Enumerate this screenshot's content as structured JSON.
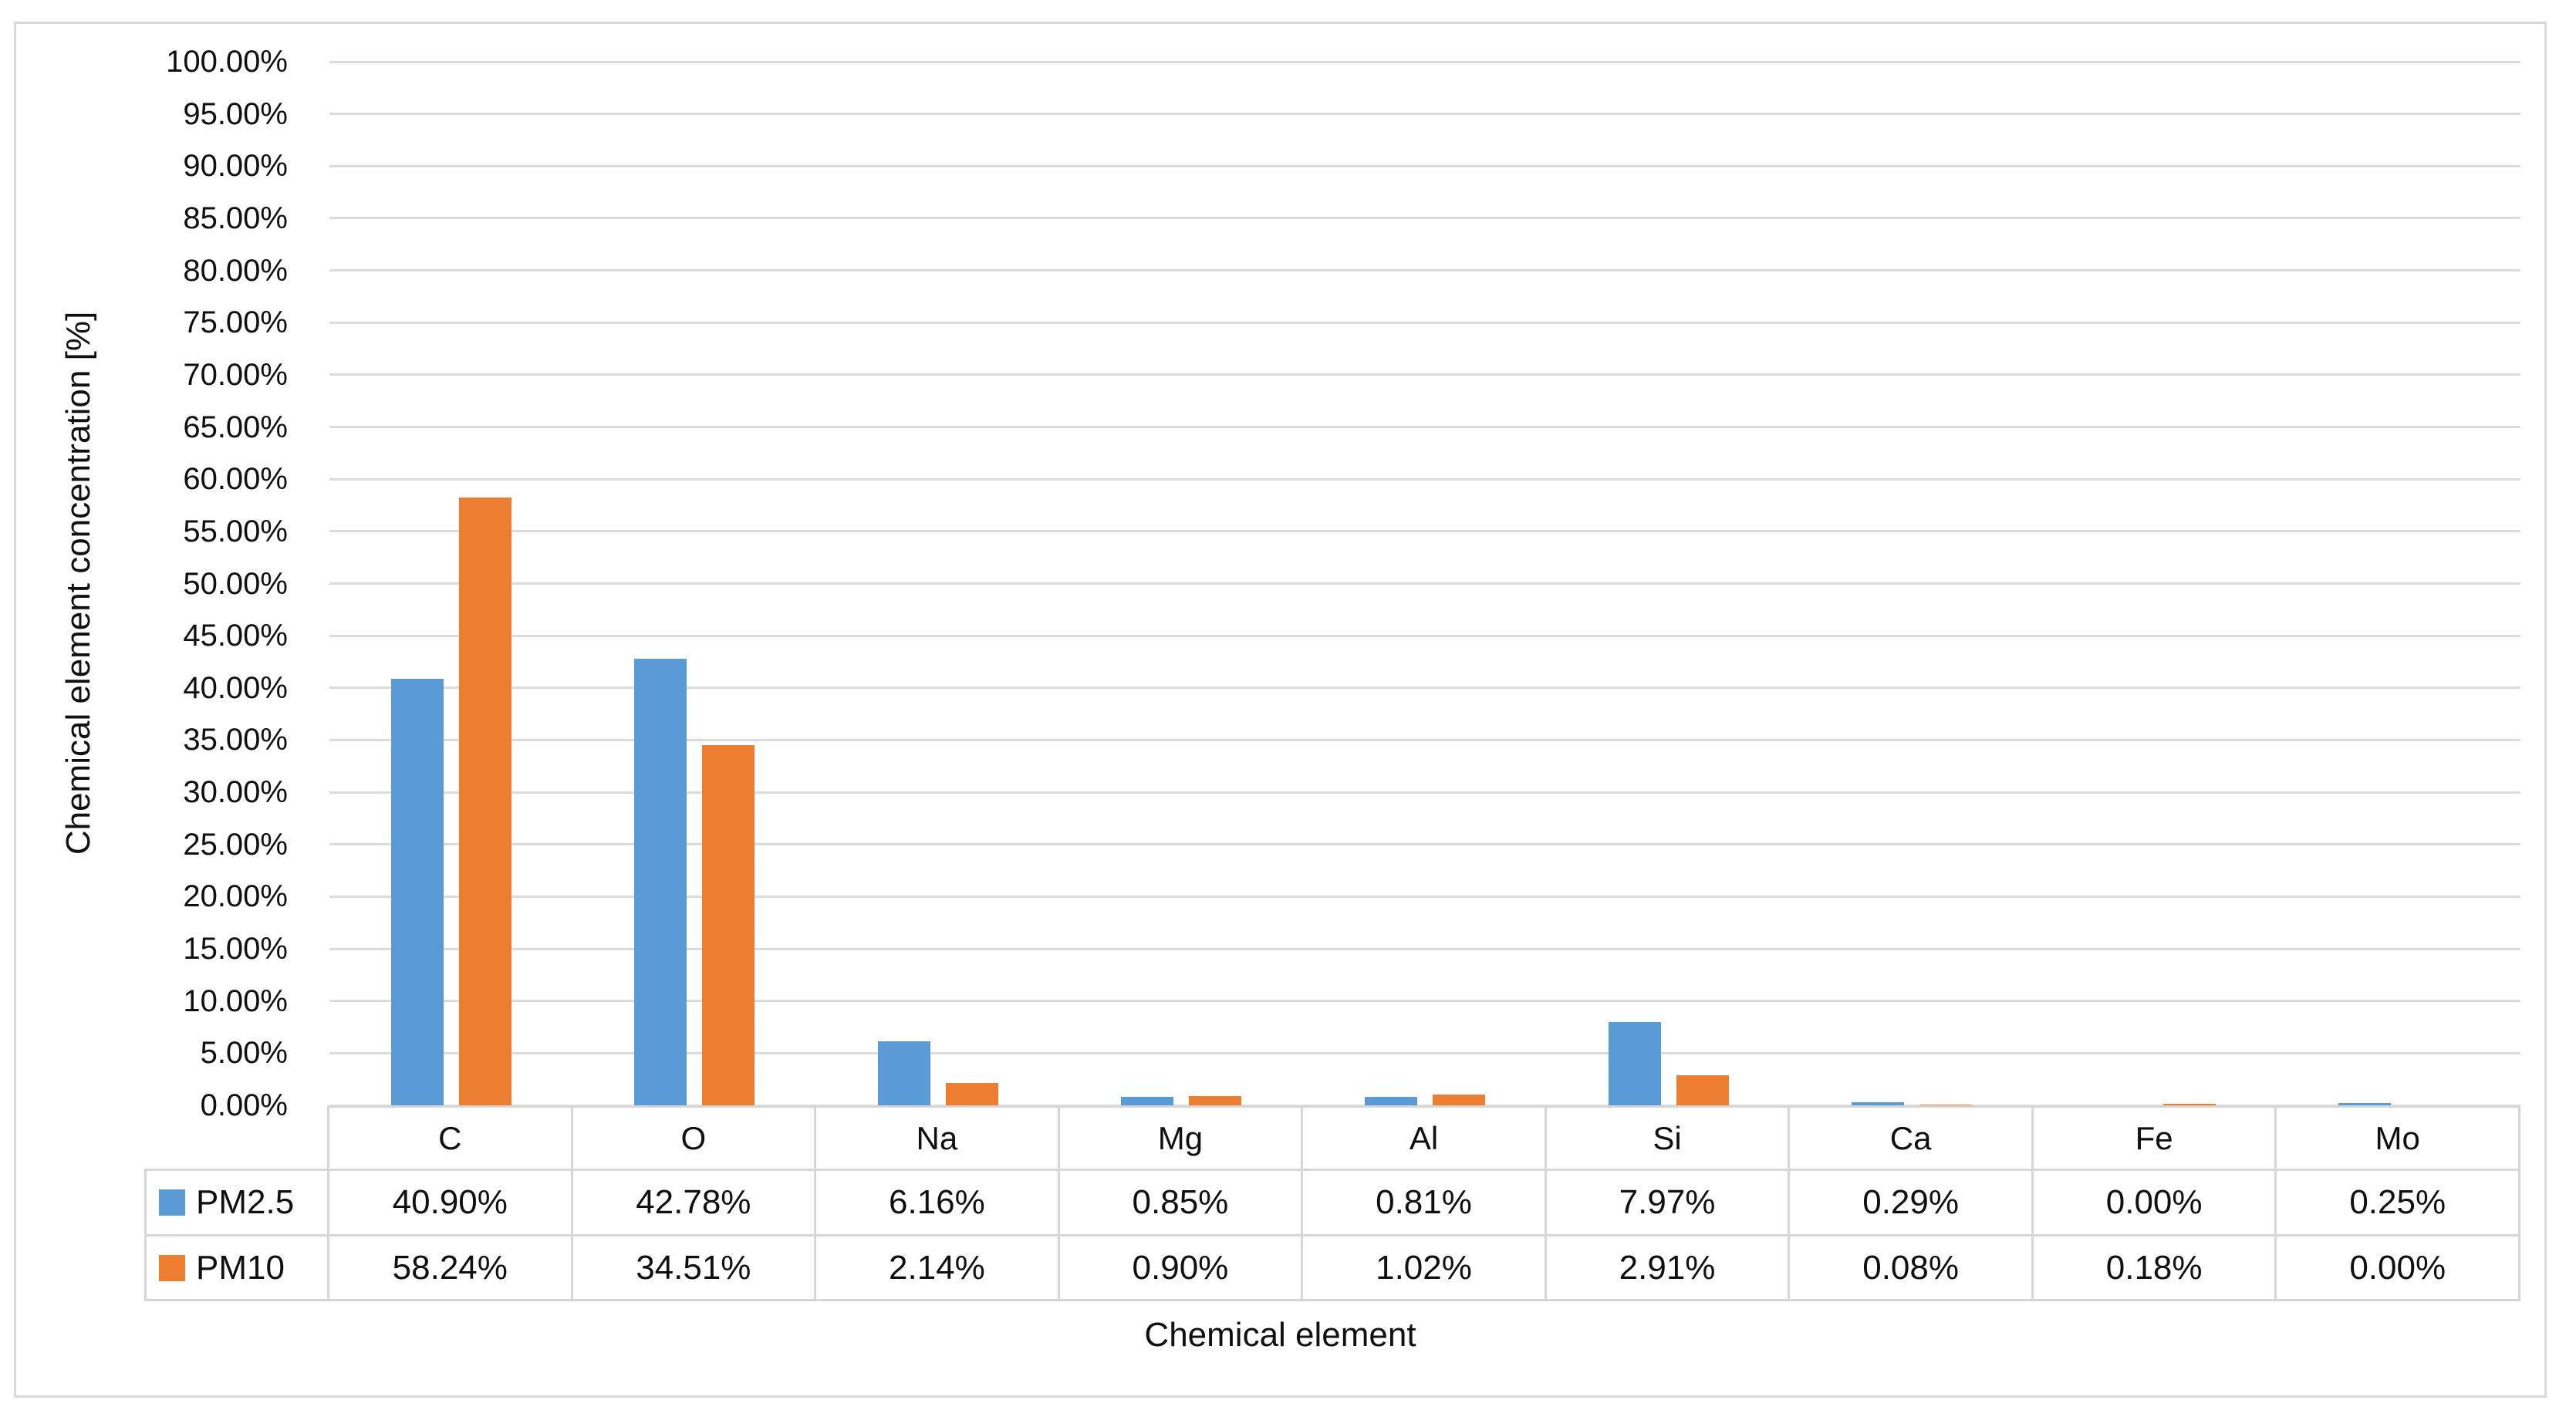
{
  "figure": {
    "background_color": "#FFFFFF",
    "border_color": "#D9D9D9"
  },
  "colors": {
    "series_pm25": "#5B9BD5",
    "series_pm10": "#ED7D31",
    "gridline": "#DCDCDC",
    "table_border": "#D6D6D6",
    "text": "#101010"
  },
  "chart_data": {
    "type": "bar",
    "title": "",
    "xlabel": "Chemical element",
    "ylabel": "Chemical element concentration [%]",
    "categories": [
      "C",
      "O",
      "Na",
      "Mg",
      "Al",
      "Si",
      "Ca",
      "Fe",
      "Mo"
    ],
    "series": [
      {
        "name": "PM2.5",
        "color": "#5B9BD5",
        "values": [
          40.9,
          42.78,
          6.16,
          0.85,
          0.81,
          7.97,
          0.29,
          0.0,
          0.25
        ],
        "labels": [
          "40.90%",
          "42.78%",
          "6.16%",
          "0.85%",
          "0.81%",
          "7.97%",
          "0.29%",
          "0.00%",
          "0.25%"
        ]
      },
      {
        "name": "PM10",
        "color": "#ED7D31",
        "values": [
          58.24,
          34.51,
          2.14,
          0.9,
          1.02,
          2.91,
          0.08,
          0.18,
          0.0
        ],
        "labels": [
          "58.24%",
          "34.51%",
          "2.14%",
          "0.90%",
          "1.02%",
          "2.91%",
          "0.08%",
          "0.18%",
          "0.00%"
        ]
      }
    ],
    "ylim": [
      0,
      100
    ],
    "ytick_step": 5,
    "ytick_labels": [
      "0.00%",
      "5.00%",
      "10.00%",
      "15.00%",
      "20.00%",
      "25.00%",
      "30.00%",
      "35.00%",
      "40.00%",
      "45.00%",
      "50.00%",
      "55.00%",
      "60.00%",
      "65.00%",
      "70.00%",
      "75.00%",
      "80.00%",
      "85.00%",
      "90.00%",
      "95.00%",
      "100.00%"
    ],
    "grid": true,
    "legend_position": "data-table-left-column",
    "data_table_shown": true
  }
}
